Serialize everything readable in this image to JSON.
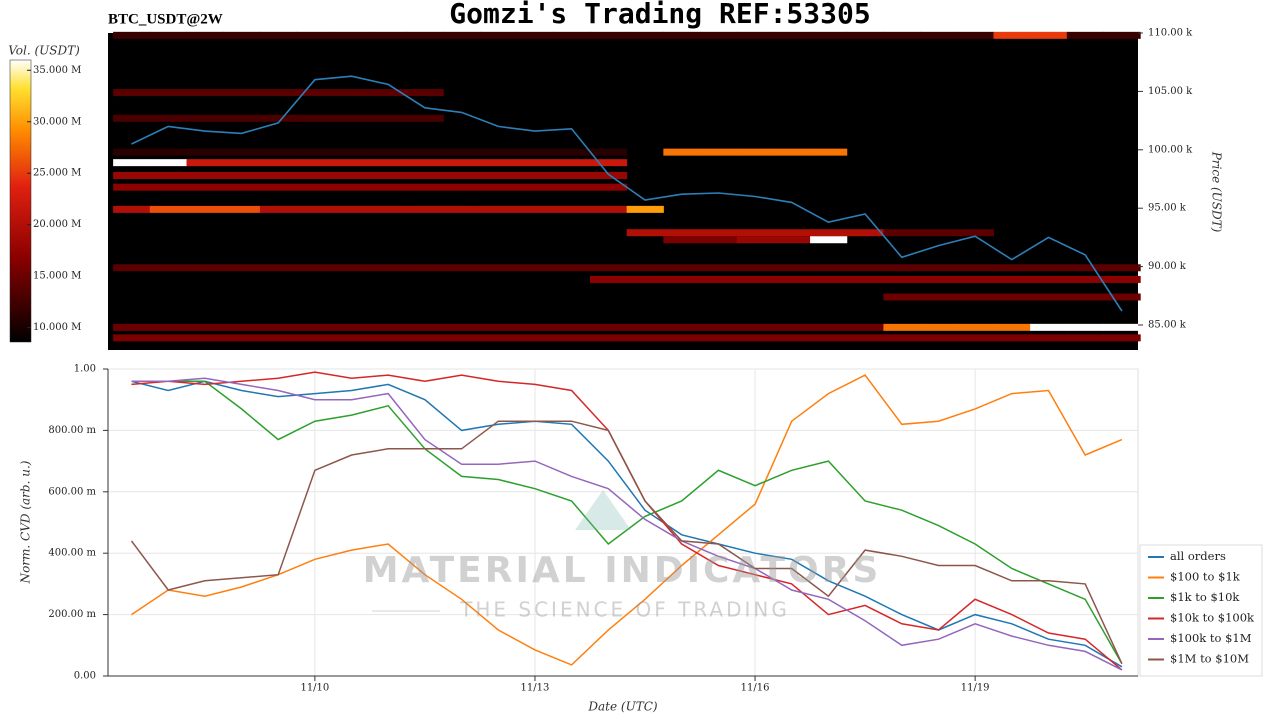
{
  "title": "Gomzi's Trading REF:53305",
  "symbol": "BTC_USDT@2W",
  "watermark": {
    "name": "MATERIAL INDICATORS",
    "tagline": "THE SCIENCE OF TRADING"
  },
  "chart_data": [
    {
      "type": "heatmap",
      "colorbar_label": "Vol. (USDT)",
      "ylabel": "Price (USDT)",
      "categories": [
        null,
        null,
        null,
        null,
        null,
        null,
        null,
        null,
        null,
        null,
        null,
        null,
        null,
        null,
        null,
        null,
        null,
        null,
        null,
        null,
        null,
        null,
        null,
        null,
        null,
        null,
        null,
        null
      ],
      "ylim": [
        82860,
        110000
      ],
      "yticks": [
        {
          "value": 85000,
          "label": "85.00 k"
        },
        {
          "value": 90000,
          "label": "90.00 k"
        },
        {
          "value": 95000,
          "label": "95.00 k"
        },
        {
          "value": 100000,
          "label": "100.00 k"
        },
        {
          "value": 105000,
          "label": "105.00 k"
        },
        {
          "value": 110000,
          "label": "110.00 k"
        }
      ],
      "clim": [
        8600000,
        36000000
      ],
      "cticks": [
        {
          "value": 10000000,
          "label": "10.000 M"
        },
        {
          "value": 15000000,
          "label": "15.000 M"
        },
        {
          "value": 20000000,
          "label": "20.000 M"
        },
        {
          "value": 25000000,
          "label": "25.000 M"
        },
        {
          "value": 30000000,
          "label": "30.000 M"
        },
        {
          "value": 35000000,
          "label": "35.000 M"
        }
      ],
      "heatmap": {
        "prices": [
          109800,
          104900,
          102700,
          99800,
          98900,
          97800,
          96800,
          94900,
          92900,
          92300,
          89900,
          88900,
          87400,
          84800,
          83900
        ],
        "values": [
          [
            12000000.0,
            12000000.0,
            12000000.0,
            12000000.0,
            12000000.0,
            12000000.0,
            12000000.0,
            12000000.0,
            12000000.0,
            12000000.0,
            12000000.0,
            12000000.0,
            12000000.0,
            12000000.0,
            12000000.0,
            12000000.0,
            12000000.0,
            12000000.0,
            12000000.0,
            12000000.0,
            12000000.0,
            12000000.0,
            12000000.0,
            12000000.0,
            25000000.0,
            25000000.0,
            12000000.0,
            12000000.0
          ],
          [
            14000000.0,
            14000000.0,
            14000000.0,
            14000000.0,
            14000000.0,
            14000000.0,
            14000000.0,
            14000000.0,
            14000000.0,
            null,
            null,
            null,
            null,
            null,
            null,
            null,
            null,
            null,
            null,
            null,
            null,
            null,
            null,
            null,
            null,
            null,
            null,
            null
          ],
          [
            13000000.0,
            13000000.0,
            13000000.0,
            13000000.0,
            13000000.0,
            13000000.0,
            13000000.0,
            13000000.0,
            13000000.0,
            null,
            null,
            null,
            null,
            null,
            null,
            null,
            null,
            null,
            null,
            null,
            null,
            null,
            null,
            null,
            null,
            null,
            null,
            null
          ],
          [
            11000000.0,
            11000000.0,
            11000000.0,
            11000000.0,
            11000000.0,
            11000000.0,
            11000000.0,
            11000000.0,
            11000000.0,
            11000000.0,
            11000000.0,
            11000000.0,
            11000000.0,
            11000000.0,
            null,
            28000000.0,
            28000000.0,
            28000000.0,
            28000000.0,
            28000000.0,
            null,
            null,
            null,
            null,
            null,
            null,
            null,
            null
          ],
          [
            36000000.0,
            36000000.0,
            22000000.0,
            22000000.0,
            22000000.0,
            22000000.0,
            22000000.0,
            22000000.0,
            22000000.0,
            22000000.0,
            22000000.0,
            22000000.0,
            22000000.0,
            22000000.0,
            null,
            null,
            null,
            null,
            null,
            null,
            null,
            null,
            null,
            null,
            null,
            null,
            null,
            null
          ],
          [
            18000000.0,
            18000000.0,
            18000000.0,
            18000000.0,
            18000000.0,
            18000000.0,
            18000000.0,
            18000000.0,
            18000000.0,
            18000000.0,
            18000000.0,
            18000000.0,
            18000000.0,
            18000000.0,
            null,
            null,
            null,
            null,
            null,
            null,
            null,
            null,
            null,
            null,
            null,
            null,
            null,
            null
          ],
          [
            17000000.0,
            17000000.0,
            17000000.0,
            17000000.0,
            17000000.0,
            17000000.0,
            17000000.0,
            17000000.0,
            17000000.0,
            17000000.0,
            17000000.0,
            17000000.0,
            17000000.0,
            17000000.0,
            null,
            null,
            null,
            null,
            null,
            null,
            null,
            null,
            null,
            null,
            null,
            null,
            null,
            null
          ],
          [
            20000000.0,
            26000000.0,
            26000000.0,
            26000000.0,
            20000000.0,
            20000000.0,
            20000000.0,
            20000000.0,
            20000000.0,
            20000000.0,
            20000000.0,
            20000000.0,
            20000000.0,
            20000000.0,
            30000000.0,
            null,
            null,
            null,
            null,
            null,
            null,
            null,
            null,
            null,
            null,
            null,
            null,
            null
          ],
          [
            null,
            null,
            null,
            null,
            null,
            null,
            null,
            null,
            null,
            null,
            null,
            null,
            null,
            null,
            20000000.0,
            20000000.0,
            20000000.0,
            20000000.0,
            20000000.0,
            20000000.0,
            20000000.0,
            14000000.0,
            14000000.0,
            14000000.0,
            null,
            null,
            null,
            null
          ],
          [
            null,
            null,
            null,
            null,
            null,
            null,
            null,
            null,
            null,
            null,
            null,
            null,
            null,
            null,
            null,
            16000000.0,
            16000000.0,
            18000000.0,
            18000000.0,
            36000000.0,
            null,
            null,
            null,
            null,
            null,
            null,
            null,
            null
          ],
          [
            14000000.0,
            14000000.0,
            14000000.0,
            14000000.0,
            14000000.0,
            14000000.0,
            14000000.0,
            14000000.0,
            14000000.0,
            14000000.0,
            14000000.0,
            14000000.0,
            14000000.0,
            14000000.0,
            14000000.0,
            14000000.0,
            14000000.0,
            14000000.0,
            14000000.0,
            14000000.0,
            14000000.0,
            14000000.0,
            14000000.0,
            14000000.0,
            14000000.0,
            14000000.0,
            14000000.0,
            14000000.0
          ],
          [
            null,
            null,
            null,
            null,
            null,
            null,
            null,
            null,
            null,
            null,
            null,
            null,
            null,
            17000000.0,
            17000000.0,
            17000000.0,
            17000000.0,
            17000000.0,
            17000000.0,
            17000000.0,
            17000000.0,
            17000000.0,
            17000000.0,
            17000000.0,
            17000000.0,
            17000000.0,
            17000000.0,
            17000000.0
          ],
          [
            null,
            null,
            null,
            null,
            null,
            null,
            null,
            null,
            null,
            null,
            null,
            null,
            null,
            null,
            null,
            null,
            null,
            null,
            null,
            null,
            null,
            15000000.0,
            15000000.0,
            15000000.0,
            15000000.0,
            15000000.0,
            15000000.0,
            15000000.0
          ],
          [
            15000000.0,
            15000000.0,
            15000000.0,
            15000000.0,
            15000000.0,
            15000000.0,
            15000000.0,
            15000000.0,
            15000000.0,
            15000000.0,
            15000000.0,
            15000000.0,
            15000000.0,
            15000000.0,
            15000000.0,
            15000000.0,
            15000000.0,
            15000000.0,
            15000000.0,
            15000000.0,
            15000000.0,
            28000000.0,
            28000000.0,
            28000000.0,
            28000000.0,
            36000000.0,
            36000000.0,
            36000000.0
          ],
          [
            16000000.0,
            16000000.0,
            16000000.0,
            16000000.0,
            16000000.0,
            16000000.0,
            16000000.0,
            16000000.0,
            16000000.0,
            16000000.0,
            16000000.0,
            16000000.0,
            16000000.0,
            16000000.0,
            16000000.0,
            16000000.0,
            16000000.0,
            16000000.0,
            16000000.0,
            16000000.0,
            16000000.0,
            16000000.0,
            16000000.0,
            16000000.0,
            16000000.0,
            16000000.0,
            16000000.0,
            16000000.0
          ]
        ]
      },
      "line": {
        "color": "#2c7fb8",
        "values": [
          100500,
          102000,
          101600,
          101400,
          102300,
          106000,
          106300,
          105600,
          103600,
          103200,
          102000,
          101600,
          101800,
          97900,
          95700,
          96200,
          96300,
          96000,
          95500,
          93800,
          94500,
          90800,
          91800,
          92600,
          90600,
          92500,
          91000,
          86200
        ]
      }
    },
    {
      "type": "line",
      "xlabel": "Date (UTC)",
      "ylabel": "Norm. CVD (arb. u.)",
      "categories": [
        null,
        null,
        null,
        null,
        null,
        "11/10",
        null,
        null,
        null,
        null,
        null,
        "11/13",
        null,
        null,
        null,
        null,
        null,
        "11/16",
        null,
        null,
        null,
        null,
        null,
        "11/19",
        null,
        null,
        null,
        null
      ],
      "ylim": [
        0,
        1
      ],
      "yticks": [
        {
          "value": 0,
          "label": "0.00"
        },
        {
          "value": 0.2,
          "label": "200.00 m"
        },
        {
          "value": 0.4,
          "label": "400.00 m"
        },
        {
          "value": 0.6,
          "label": "600.00 m"
        },
        {
          "value": 0.8,
          "label": "800.00 m"
        },
        {
          "value": 1,
          "label": "1.00"
        }
      ],
      "grid": true,
      "legend": "lower right",
      "series": [
        {
          "name": "all orders",
          "color": "#1f77b4",
          "values": [
            0.96,
            0.93,
            0.96,
            0.93,
            0.91,
            0.92,
            0.93,
            0.95,
            0.9,
            0.8,
            0.82,
            0.83,
            0.82,
            0.7,
            0.54,
            0.46,
            0.43,
            0.4,
            0.38,
            0.31,
            0.26,
            0.2,
            0.15,
            0.2,
            0.17,
            0.12,
            0.1,
            0.03
          ]
        },
        {
          "name": "$100 to $1k",
          "color": "#ff7f0e",
          "values": [
            0.2,
            0.28,
            0.26,
            0.29,
            0.33,
            0.38,
            0.41,
            0.43,
            0.33,
            0.25,
            0.15,
            0.085,
            0.036,
            0.15,
            0.25,
            0.36,
            0.46,
            0.56,
            0.83,
            0.92,
            0.98,
            0.82,
            0.83,
            0.87,
            0.92,
            0.93,
            0.72,
            0.77
          ]
        },
        {
          "name": "$1k to $10k",
          "color": "#2ca02c",
          "values": [
            0.96,
            0.96,
            0.96,
            0.87,
            0.77,
            0.83,
            0.85,
            0.88,
            0.74,
            0.65,
            0.64,
            0.61,
            0.57,
            0.43,
            0.52,
            0.57,
            0.67,
            0.62,
            0.67,
            0.7,
            0.57,
            0.54,
            0.49,
            0.43,
            0.35,
            0.3,
            0.25,
            0.04
          ]
        },
        {
          "name": "$10k to $100k",
          "color": "#d62728",
          "values": [
            0.95,
            0.96,
            0.95,
            0.96,
            0.97,
            0.99,
            0.97,
            0.98,
            0.96,
            0.98,
            0.96,
            0.95,
            0.93,
            0.8,
            0.57,
            0.43,
            0.36,
            0.33,
            0.3,
            0.2,
            0.23,
            0.17,
            0.15,
            0.25,
            0.2,
            0.14,
            0.12,
            0.02
          ]
        },
        {
          "name": "$100k to $1M",
          "color": "#9467bd",
          "values": [
            0.96,
            0.96,
            0.97,
            0.95,
            0.93,
            0.9,
            0.9,
            0.92,
            0.77,
            0.69,
            0.69,
            0.7,
            0.65,
            0.61,
            0.51,
            0.44,
            0.39,
            0.35,
            0.28,
            0.25,
            0.18,
            0.1,
            0.12,
            0.17,
            0.13,
            0.1,
            0.08,
            0.02
          ]
        },
        {
          "name": "$1M to $10M",
          "color": "#8c564b",
          "values": [
            0.44,
            0.28,
            0.31,
            0.32,
            0.33,
            0.67,
            0.72,
            0.74,
            0.74,
            0.74,
            0.83,
            0.83,
            0.83,
            0.8,
            0.57,
            0.44,
            0.43,
            0.35,
            0.35,
            0.26,
            0.41,
            0.39,
            0.36,
            0.36,
            0.31,
            0.31,
            0.3,
            0.04
          ]
        }
      ]
    }
  ]
}
